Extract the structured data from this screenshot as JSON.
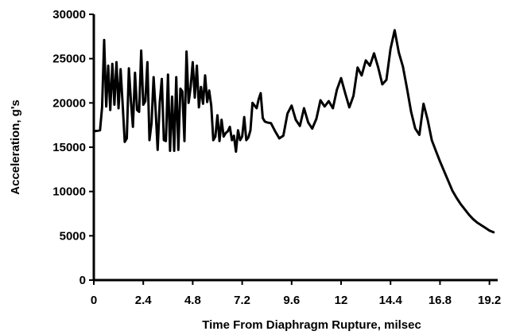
{
  "chart_data": {
    "type": "line",
    "title": "",
    "xlabel": "Time From Diaphragm Rupture, milsec",
    "ylabel": "Acceleration, g's",
    "xlim": [
      0,
      19.6
    ],
    "ylim": [
      0,
      30000
    ],
    "x_ticks": [
      0,
      2.4,
      4.8,
      7.2,
      9.6,
      12,
      14.4,
      16.8,
      19.2
    ],
    "x_tick_labels": [
      "0",
      "2.4",
      "4.8",
      "7.2",
      "9.6",
      "12",
      "14.4",
      "16.8",
      "19.2"
    ],
    "y_ticks": [
      0,
      5000,
      10000,
      15000,
      20000,
      25000,
      30000
    ],
    "y_tick_labels": [
      "0",
      "5000",
      "10000",
      "15000",
      "20000",
      "25000",
      "30000"
    ],
    "grid": false,
    "legend": "none",
    "line_color": "#000000",
    "series": [
      {
        "x": [
          0.0,
          0.3,
          0.4,
          0.5,
          0.6,
          0.7,
          0.8,
          0.9,
          1.0,
          1.1,
          1.2,
          1.3,
          1.4,
          1.5,
          1.6,
          1.7,
          1.8,
          1.9,
          2.0,
          2.1,
          2.2,
          2.3,
          2.4,
          2.5,
          2.6,
          2.7,
          2.8,
          2.9,
          3.0,
          3.1,
          3.2,
          3.3,
          3.4,
          3.5,
          3.6,
          3.7,
          3.8,
          3.9,
          4.0,
          4.1,
          4.2,
          4.3,
          4.4,
          4.5,
          4.6,
          4.7,
          4.8,
          4.9,
          5.0,
          5.1,
          5.2,
          5.3,
          5.4,
          5.5,
          5.6,
          5.7,
          5.8,
          5.9,
          6.0,
          6.1,
          6.2,
          6.3,
          6.4,
          6.5,
          6.6,
          6.7,
          6.8,
          6.9,
          7.0,
          7.1,
          7.2,
          7.3,
          7.4,
          7.5,
          7.6,
          7.7,
          7.8,
          7.9,
          8.0,
          8.1,
          8.2,
          8.3,
          8.4,
          8.6,
          8.8,
          9.0,
          9.2,
          9.4,
          9.6,
          9.8,
          10.0,
          10.2,
          10.4,
          10.6,
          10.8,
          11.0,
          11.2,
          11.4,
          11.6,
          11.8,
          12.0,
          12.2,
          12.4,
          12.6,
          12.8,
          13.0,
          13.2,
          13.4,
          13.6,
          13.8,
          14.0,
          14.2,
          14.4,
          14.6,
          14.8,
          15.0,
          15.2,
          15.4,
          15.6,
          15.8,
          16.0,
          16.2,
          16.4,
          16.6,
          16.8,
          17.0,
          17.2,
          17.4,
          17.6,
          17.8,
          18.0,
          18.2,
          18.4,
          18.6,
          18.8,
          19.0,
          19.2,
          19.4
        ],
        "y": [
          16800,
          16900,
          19500,
          27100,
          19600,
          24200,
          19200,
          24400,
          19800,
          24600,
          19400,
          23800,
          19800,
          15600,
          16000,
          23900,
          20200,
          17300,
          23400,
          19200,
          19000,
          25900,
          19800,
          20200,
          24600,
          15800,
          17700,
          22900,
          19100,
          14700,
          20000,
          22700,
          15800,
          15700,
          23200,
          14600,
          20700,
          14600,
          22900,
          14700,
          21600,
          21300,
          15700,
          25800,
          20000,
          21800,
          24600,
          20600,
          24200,
          19500,
          21800,
          19900,
          23100,
          20100,
          21400,
          19700,
          15800,
          16200,
          18600,
          15700,
          18100,
          16200,
          16600,
          16800,
          17300,
          15800,
          16300,
          14500,
          16900,
          15800,
          16200,
          18400,
          15800,
          16100,
          16900,
          20000,
          19700,
          19400,
          20400,
          21100,
          18300,
          17900,
          17800,
          17700,
          16800,
          16000,
          16300,
          18800,
          19700,
          18100,
          17400,
          19400,
          17800,
          17100,
          18200,
          20300,
          19600,
          20200,
          19400,
          21500,
          22800,
          21100,
          19500,
          20800,
          24000,
          23100,
          24800,
          24200,
          25600,
          24000,
          22100,
          22600,
          26100,
          28200,
          25700,
          24100,
          21600,
          19000,
          17100,
          16400,
          19900,
          18100,
          15800,
          14600,
          13400,
          12300,
          11200,
          10100,
          9300,
          8600,
          8000,
          7400,
          6900,
          6500,
          6200,
          5900,
          5600,
          5400
        ]
      }
    ]
  }
}
